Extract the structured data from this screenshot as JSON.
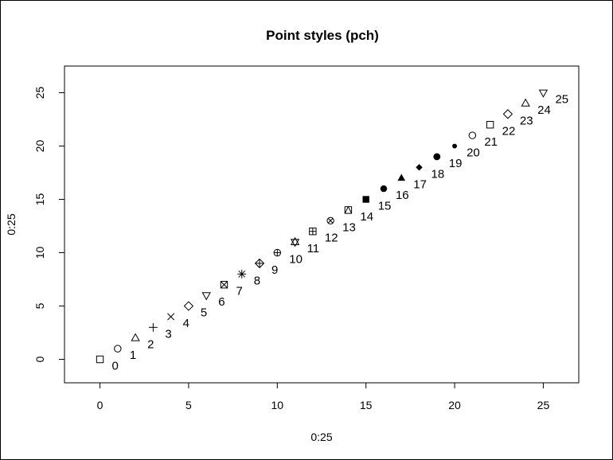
{
  "chart_data": {
    "type": "scatter",
    "title": "Point styles (pch)",
    "xlabel": "0:25",
    "ylabel": "0:25",
    "xlim": [
      -2,
      27
    ],
    "ylim": [
      -2.2,
      27.5
    ],
    "xticks": [
      "0",
      "5",
      "10",
      "15",
      "20",
      "25"
    ],
    "yticks": [
      "0",
      "5",
      "10",
      "15",
      "20",
      "25"
    ],
    "grid": false,
    "x": [
      0,
      1,
      2,
      3,
      4,
      5,
      6,
      7,
      8,
      9,
      10,
      11,
      12,
      13,
      14,
      15,
      16,
      17,
      18,
      19,
      20,
      21,
      22,
      23,
      24,
      25
    ],
    "y": [
      0,
      1,
      2,
      3,
      4,
      5,
      6,
      7,
      8,
      9,
      10,
      11,
      12,
      13,
      14,
      15,
      16,
      17,
      18,
      19,
      20,
      21,
      22,
      23,
      24,
      25
    ],
    "point_labels": [
      "0",
      "1",
      "2",
      "3",
      "4",
      "5",
      "6",
      "7",
      "8",
      "9",
      "10",
      "11",
      "12",
      "13",
      "14",
      "15",
      "16",
      "17",
      "18",
      "19",
      "20",
      "21",
      "22",
      "23",
      "24",
      "25"
    ],
    "pch": [
      0,
      1,
      2,
      3,
      4,
      5,
      6,
      7,
      8,
      9,
      10,
      11,
      12,
      13,
      14,
      15,
      16,
      17,
      18,
      19,
      20,
      21,
      22,
      23,
      24,
      25
    ]
  }
}
